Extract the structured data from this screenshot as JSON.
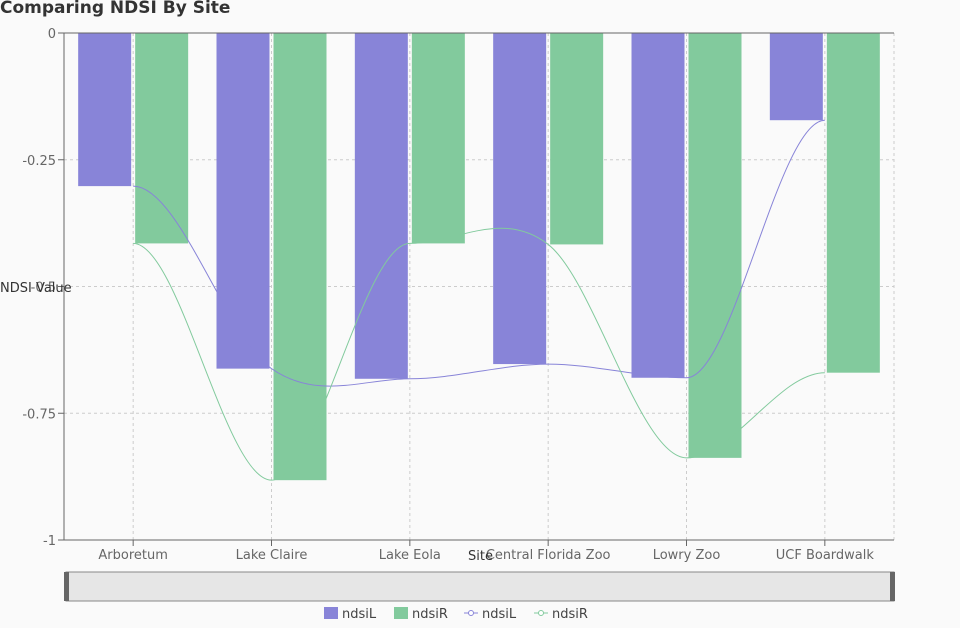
{
  "chart_data": {
    "type": "bar",
    "title": "Comparing NDSI By Site",
    "xlabel": "Site",
    "ylabel": "NDSI Value",
    "categories": [
      "Arboretum",
      "Lake Claire",
      "Lake Eola",
      "Central Florida Zoo",
      "Lowry Zoo",
      "UCF Boardwalk"
    ],
    "ylim": [
      -1,
      0
    ],
    "yticks": [
      0,
      -0.25,
      -0.5,
      -0.75,
      -1
    ],
    "ytick_labels": [
      "0",
      "-0.25",
      "-0.5",
      "-0.75",
      "-1"
    ],
    "grid": true,
    "legend_position": "bottom",
    "bar_series": [
      {
        "name": "ndsiL",
        "color": "#8884d8",
        "values": [
          -0.302,
          -0.662,
          -0.682,
          -0.653,
          -0.68,
          -0.172
        ]
      },
      {
        "name": "ndsiR",
        "color": "#82ca9d",
        "values": [
          -0.415,
          -0.882,
          -0.415,
          -0.417,
          -0.838,
          -0.67
        ]
      }
    ],
    "line_series": [
      {
        "name": "ndsiL",
        "color": "#8884d8",
        "values": [
          -0.302,
          -0.662,
          -0.682,
          -0.653,
          -0.68,
          -0.172
        ]
      },
      {
        "name": "ndsiR",
        "color": "#82ca9d",
        "values": [
          -0.415,
          -0.882,
          -0.415,
          -0.417,
          -0.838,
          -0.67
        ]
      }
    ],
    "brush": true
  }
}
